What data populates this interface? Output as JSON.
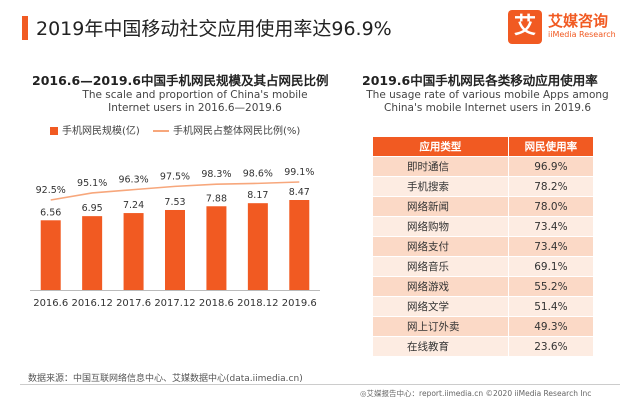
{
  "colors": {
    "accent": "#f15a22",
    "bar": "#f15a22",
    "line": "#f7a77c",
    "row_odd": "#fbd9c6",
    "row_even": "#fdece2",
    "header": "#f15a22"
  },
  "header": {
    "title": "2019年中国移动社交应用使用率达96.9%"
  },
  "logo": {
    "mark": "艾",
    "name_cn": "艾媒咨询",
    "name_en": "iiMedia Research"
  },
  "left_panel": {
    "title": "2016.6—2019.6中国手机网民规模及其占网民比例",
    "subtitle": "The scale and proportion of China's mobile Internet users in 2016.6—2019.6"
  },
  "chart_data": {
    "type": "bar",
    "categories": [
      "2016.6",
      "2016.12",
      "2017.6",
      "2017.12",
      "2018.6",
      "2018.12",
      "2019.6"
    ],
    "series": [
      {
        "name": "手机网民规模(亿)",
        "type": "bar",
        "values": [
          6.56,
          6.95,
          7.24,
          7.53,
          7.88,
          8.17,
          8.47
        ],
        "labels": [
          "6.56",
          "6.95",
          "7.24",
          "7.53",
          "7.88",
          "8.17",
          "8.47"
        ]
      },
      {
        "name": "手机网民占整体网民比例(%)",
        "type": "line",
        "values": [
          92.5,
          95.1,
          96.3,
          97.5,
          98.3,
          98.6,
          99.1
        ],
        "labels": [
          "92.5%",
          "95.1%",
          "96.3%",
          "97.5%",
          "98.3%",
          "98.6%",
          "99.1%"
        ]
      }
    ],
    "grid": false,
    "legend_position": "top-left"
  },
  "right_panel": {
    "title": "2019.6中国手机网民各类移动应用使用率",
    "subtitle": "The usage rate of various mobile Apps among China's mobile Internet users in 2019.6",
    "columns": [
      "应用类型",
      "网民使用率"
    ],
    "rows": [
      {
        "name": "即时通信",
        "rate": "96.9%"
      },
      {
        "name": "手机搜索",
        "rate": "78.2%"
      },
      {
        "name": "网络新闻",
        "rate": "78.0%"
      },
      {
        "name": "网络购物",
        "rate": "73.4%"
      },
      {
        "name": "网络支付",
        "rate": "73.4%"
      },
      {
        "name": "网络音乐",
        "rate": "69.1%"
      },
      {
        "name": "网络游戏",
        "rate": "55.2%"
      },
      {
        "name": "网络文学",
        "rate": "51.4%"
      },
      {
        "name": "网上订外卖",
        "rate": "49.3%"
      },
      {
        "name": "在线教育",
        "rate": "23.6%"
      }
    ]
  },
  "footer": {
    "source": "数据来源：中国互联网络信息中心、艾媒数据中心(data.iimedia.cn)",
    "right": "◎艾媒报告中心：report.iimedia.cn     ©2020 iiMedia Research Inc"
  }
}
